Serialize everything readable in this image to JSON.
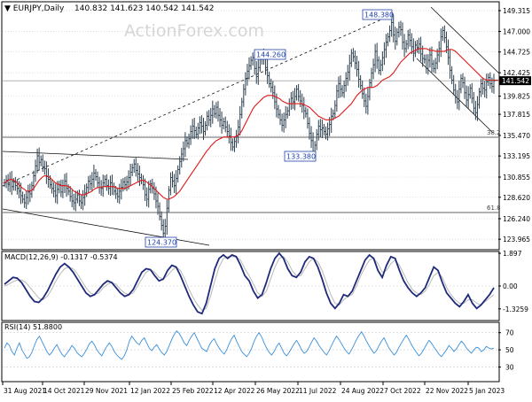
{
  "header": {
    "symbol_label": "EURJPY,Daily",
    "ohlc": "140.832 141.623 140.542 141.542"
  },
  "watermark": "ActionForex.com",
  "colors": {
    "price": "#2b3f4f",
    "ema": "#e01818",
    "macd": "#1f2a7a",
    "signal": "#b8b8b8",
    "rsi": "#3a8fd8",
    "trend": "#111111",
    "grid": "#cccccc"
  },
  "chart_data": [
    {
      "type": "candlestick",
      "title": "EURJPY,Daily",
      "y_ticks": [
        "149.315",
        "147.000",
        "144.725",
        "142.425",
        "139.825",
        "137.815",
        "135.470",
        "133.195",
        "130.855",
        "128.620",
        "126.240",
        "123.965"
      ],
      "ylim": [
        123.965,
        149.315
      ],
      "x_ticks": [
        "31 Aug 2021",
        "14 Oct 2021",
        "29 Nov 2021",
        "12 Jan 2022",
        "25 Feb 2022",
        "12 Apr 2022",
        "26 May 2022",
        "11 Jul 2022",
        "24 Aug 2022",
        "7 Oct 2022",
        "22 Nov 2022",
        "5 Jan 2023"
      ],
      "current_price": 141.542,
      "current_price_label": "141.542",
      "series": [
        {
          "values": [
            130.2,
            130.5,
            130.0,
            130.6,
            129.8,
            130.3,
            129.9,
            129.6,
            129.3,
            128.8,
            128.4,
            128.0,
            128.6,
            129.2,
            129.0,
            129.9,
            131.0,
            132.1,
            133.2,
            132.5,
            132.8,
            132.0,
            131.8,
            130.9,
            130.6,
            130.0,
            129.6,
            129.3,
            128.8,
            129.5,
            130.0,
            129.2,
            129.9,
            130.4,
            129.6,
            129.3,
            128.7,
            128.2,
            128.0,
            128.4,
            128.9,
            128.2,
            128.0,
            128.6,
            129.1,
            129.7,
            130.4,
            130.1,
            130.6,
            131.3,
            130.9,
            130.2,
            129.7,
            129.6,
            130.2,
            130.6,
            129.9,
            129.6,
            130.2,
            129.8,
            129.3,
            129.0,
            128.7,
            129.3,
            129.7,
            130.3,
            130.0,
            130.3,
            130.8,
            131.4,
            131.9,
            132.3,
            131.6,
            131.2,
            130.8,
            130.5,
            130.0,
            128.9,
            128.4,
            129.5,
            130.1,
            129.6,
            129.0,
            128.2,
            127.6,
            126.5,
            125.5,
            124.6,
            125.4,
            127.4,
            129.4,
            130.8,
            130.4,
            129.9,
            130.7,
            131.7,
            132.6,
            133.4,
            134.0,
            134.9,
            134.6,
            135.1,
            135.9,
            136.5,
            136.0,
            135.6,
            136.3,
            136.9,
            136.5,
            135.9,
            136.6,
            137.6,
            137.2,
            137.7,
            138.4,
            137.9,
            138.6,
            137.7,
            137.2,
            136.6,
            137.0,
            136.4,
            135.9,
            135.4,
            134.7,
            134.2,
            134.8,
            135.4,
            136.4,
            137.8,
            139.2,
            140.6,
            141.8,
            142.6,
            143.2,
            143.8,
            144.1,
            142.9,
            142.0,
            143.0,
            143.9,
            144.4,
            144.0,
            143.0,
            142.1,
            141.2,
            140.8,
            140.2,
            139.2,
            138.4,
            137.8,
            137.2,
            136.6,
            137.2,
            137.8,
            138.2,
            139.0,
            139.6,
            139.2,
            139.8,
            140.6,
            139.8,
            139.3,
            138.8,
            138.2,
            137.9,
            136.8,
            135.7,
            134.9,
            133.5,
            134.4,
            135.6,
            136.5,
            136.1,
            136.3,
            135.9,
            135.6,
            136.2,
            136.7,
            137.6,
            137.9,
            138.8,
            140.4,
            141.2,
            140.6,
            140.2,
            141.0,
            141.8,
            142.5,
            143.5,
            144.6,
            144.2,
            143.5,
            142.8,
            141.7,
            141.0,
            140.1,
            139.3,
            138.7,
            139.8,
            141.3,
            142.4,
            143.3,
            144.8,
            143.8,
            142.7,
            143.3,
            144.1,
            145.0,
            145.8,
            146.4,
            147.1,
            148.0,
            146.6,
            145.9,
            146.9,
            147.5,
            147.2,
            145.8,
            145.1,
            145.6,
            146.6,
            146.0,
            145.3,
            144.6,
            145.5,
            145.2,
            145.6,
            144.5,
            144.0,
            143.9,
            142.9,
            143.8,
            144.4,
            143.4,
            142.9,
            143.5,
            144.4,
            145.1,
            146.4,
            147.1,
            146.3,
            145.3,
            144.1,
            142.7,
            141.6,
            140.5,
            139.7,
            139.2,
            140.6,
            141.8,
            141.3,
            140.2,
            139.4,
            140.0,
            140.7,
            139.6,
            138.5,
            138.0,
            138.9,
            140.3,
            141.2,
            140.7,
            140.5,
            141.4,
            141.9,
            141.2,
            140.9,
            141.5
          ]
        },
        {
          "name": "EMA",
          "values": [
            130.2,
            130.3,
            130.5,
            130.6,
            130.6,
            130.5,
            130.4,
            130.2,
            130.0,
            129.8,
            129.6,
            129.5,
            129.3,
            129.3,
            129.3,
            129.4,
            129.6,
            129.9,
            130.2,
            130.5,
            130.7,
            130.9,
            131.0,
            131.0,
            130.9,
            130.8,
            130.6,
            130.4,
            130.2,
            130.1,
            130.0,
            129.9,
            129.9,
            129.9,
            129.9,
            129.8,
            129.7,
            129.5,
            129.3,
            129.2,
            129.1,
            129.0,
            128.9,
            128.9,
            128.9,
            129.0,
            129.1,
            129.2,
            129.3,
            129.5,
            129.6,
            129.7,
            129.7,
            129.7,
            129.8,
            129.8,
            129.8,
            129.8,
            129.8,
            129.8,
            129.8,
            129.7,
            129.6,
            129.6,
            129.6,
            129.6,
            129.6,
            129.7,
            129.8,
            129.9,
            130.0,
            130.1,
            130.2,
            130.3,
            130.4,
            130.5,
            130.5,
            130.4,
            130.3,
            130.1,
            130.0,
            129.8,
            129.6,
            129.4,
            129.2,
            129.0,
            128.8,
            128.6,
            128.5,
            128.4,
            128.4,
            128.5,
            128.6,
            128.7,
            128.9,
            129.1,
            129.3,
            129.6,
            129.9,
            130.2,
            130.5,
            130.8,
            131.1,
            131.4,
            131.7,
            132.0,
            132.3,
            132.6,
            132.9,
            133.2,
            133.5,
            133.8,
            134.0,
            134.3,
            134.5,
            134.7,
            134.9,
            135.0,
            135.1,
            135.2,
            135.3,
            135.3,
            135.3,
            135.3,
            135.3,
            135.3,
            135.3,
            135.4,
            135.5,
            135.7,
            136.0,
            136.4,
            136.8,
            137.2,
            137.6,
            138.0,
            138.4,
            138.7,
            138.9,
            139.1,
            139.3,
            139.5,
            139.7,
            139.8,
            139.9,
            139.9,
            139.9,
            139.9,
            139.8,
            139.7,
            139.6,
            139.5,
            139.3,
            139.2,
            139.1,
            139.0,
            139.0,
            139.0,
            139.0,
            139.0,
            139.0,
            139.0,
            139.0,
            139.0,
            138.9,
            138.8,
            138.7,
            138.6,
            138.4,
            138.2,
            138.0,
            137.8,
            137.6,
            137.5,
            137.4,
            137.3,
            137.2,
            137.2,
            137.2,
            137.2,
            137.3,
            137.4,
            137.5,
            137.6,
            137.8,
            138.0,
            138.2,
            138.4,
            138.6,
            138.8,
            139.0,
            139.3,
            139.6,
            139.9,
            140.1,
            140.3,
            140.5,
            140.6,
            140.7,
            140.8,
            140.8,
            140.8,
            140.8,
            140.9,
            141.0,
            141.2,
            141.4,
            141.6,
            141.7,
            141.8,
            141.9,
            142.0,
            142.2,
            142.4,
            142.7,
            143.0,
            143.3,
            143.6,
            143.8,
            144.0,
            144.2,
            144.4,
            144.6,
            144.7,
            144.8,
            144.9,
            145.0,
            145.1,
            145.1,
            145.1,
            145.1,
            145.1,
            145.0,
            144.9,
            144.9,
            144.9,
            144.8,
            144.8,
            144.8,
            144.8,
            144.8,
            144.8,
            144.9,
            145.0,
            145.0,
            145.0,
            144.9,
            144.8,
            144.6,
            144.4,
            144.2,
            144.0,
            143.8,
            143.6,
            143.4,
            143.2,
            143.0,
            142.8,
            142.6,
            142.4,
            142.2,
            142.0,
            141.8,
            141.7,
            141.6,
            141.6,
            141.6,
            141.6,
            141.6,
            141.6,
            141.6,
            141.5
          ]
        }
      ]
    },
    {
      "type": "line",
      "title": "MACD(12,26,9) -0.1317 -0.5374",
      "y_ticks": [
        "1.897",
        "0.00",
        "-1.3259"
      ],
      "ylim": [
        -1.9,
        1.9
      ],
      "series": [
        {
          "name": "MACD",
          "values": [
            0.1,
            0.3,
            0.5,
            0.45,
            0.2,
            -0.2,
            -0.6,
            -0.9,
            -0.95,
            -0.7,
            -0.3,
            0.2,
            0.7,
            1.1,
            1.3,
            1.1,
            0.8,
            0.4,
            0.0,
            -0.4,
            -0.6,
            -0.5,
            -0.2,
            0.1,
            0.3,
            0.2,
            -0.1,
            -0.4,
            -0.6,
            -0.5,
            -0.2,
            0.3,
            0.8,
            1.0,
            0.95,
            0.6,
            0.3,
            0.4,
            0.9,
            1.2,
            1.1,
            0.6,
            0.0,
            -0.6,
            -1.1,
            -1.5,
            -1.6,
            -1.0,
            0.0,
            1.0,
            1.6,
            1.8,
            1.6,
            1.8,
            1.7,
            1.2,
            0.6,
            0.3,
            -0.3,
            -0.7,
            -0.5,
            0.2,
            1.0,
            1.6,
            1.9,
            1.6,
            1.0,
            0.6,
            0.5,
            0.8,
            1.4,
            1.7,
            1.6,
            1.1,
            0.4,
            -0.4,
            -1.0,
            -1.3,
            -1.0,
            -0.5,
            -0.6,
            -0.3,
            0.3,
            0.9,
            1.5,
            1.8,
            1.6,
            0.9,
            0.5,
            1.2,
            1.7,
            1.6,
            0.9,
            0.3,
            -0.1,
            -0.4,
            -0.6,
            -0.4,
            -0.1,
            0.5,
            1.1,
            0.9,
            0.2,
            -0.4,
            -0.7,
            -1.0,
            -1.2,
            -0.9,
            -0.5,
            -1.0,
            -1.3,
            -1.1,
            -0.8,
            -0.5,
            -0.1
          ]
        },
        {
          "name": "Signal",
          "values": [
            0.0,
            0.1,
            0.25,
            0.35,
            0.35,
            0.2,
            -0.1,
            -0.4,
            -0.7,
            -0.8,
            -0.6,
            -0.2,
            0.3,
            0.7,
            1.0,
            1.1,
            1.0,
            0.7,
            0.3,
            -0.1,
            -0.4,
            -0.5,
            -0.4,
            -0.1,
            0.1,
            0.2,
            0.1,
            -0.2,
            -0.4,
            -0.5,
            -0.4,
            0.0,
            0.4,
            0.8,
            0.95,
            0.8,
            0.5,
            0.4,
            0.6,
            0.9,
            1.1,
            0.9,
            0.4,
            -0.2,
            -0.7,
            -1.1,
            -1.4,
            -1.3,
            -0.6,
            0.3,
            1.1,
            1.6,
            1.7,
            1.7,
            1.7,
            1.5,
            1.0,
            0.6,
            0.1,
            -0.4,
            -0.6,
            -0.3,
            0.4,
            1.1,
            1.6,
            1.7,
            1.4,
            0.9,
            0.6,
            0.6,
            1.0,
            1.4,
            1.6,
            1.4,
            0.9,
            0.2,
            -0.5,
            -1.0,
            -1.1,
            -0.8,
            -0.6,
            -0.5,
            0.0,
            0.6,
            1.1,
            1.5,
            1.6,
            1.3,
            0.8,
            0.9,
            1.3,
            1.5,
            1.2,
            0.7,
            0.2,
            -0.2,
            -0.4,
            -0.5,
            -0.3,
            0.1,
            0.6,
            0.8,
            0.5,
            -0.1,
            -0.5,
            -0.8,
            -1.0,
            -1.0,
            -0.8,
            -0.8,
            -1.0,
            -1.1,
            -0.9,
            -0.7,
            -0.5
          ]
        }
      ]
    },
    {
      "type": "line",
      "title": "RSI(14) 51.8800",
      "y_ticks": [
        "70",
        "50",
        "30"
      ],
      "ylim": [
        15,
        80
      ],
      "series": [
        {
          "name": "RSI",
          "values": [
            52,
            58,
            55,
            48,
            44,
            52,
            58,
            50,
            45,
            40,
            42,
            47,
            55,
            62,
            66,
            60,
            54,
            48,
            44,
            47,
            52,
            56,
            50,
            45,
            42,
            46,
            50,
            55,
            52,
            47,
            44,
            42,
            46,
            51,
            57,
            60,
            56,
            50,
            46,
            43,
            49,
            54,
            58,
            54,
            48,
            44,
            41,
            39,
            43,
            50,
            60,
            66,
            62,
            58,
            56,
            61,
            64,
            58,
            52,
            49,
            53,
            56,
            51,
            47,
            44,
            48,
            55,
            62,
            68,
            72,
            69,
            64,
            58,
            55,
            61,
            66,
            70,
            64,
            58,
            52,
            50,
            48,
            55,
            60,
            63,
            57,
            52,
            48,
            45,
            50,
            57,
            63,
            67,
            60,
            54,
            48,
            45,
            42,
            46,
            52,
            60,
            66,
            70,
            65,
            58,
            52,
            47,
            44,
            48,
            54,
            58,
            52,
            46,
            43,
            47,
            52,
            57,
            61,
            56,
            50,
            46,
            48,
            53,
            59,
            64,
            60,
            55,
            51,
            47,
            44,
            49,
            55,
            61,
            66,
            62,
            57,
            52,
            48,
            45,
            50,
            56,
            62,
            67,
            71,
            66,
            60,
            55,
            50,
            46,
            49,
            55,
            60,
            64,
            58,
            52,
            48,
            44,
            47,
            53,
            58,
            63,
            67,
            62,
            56,
            51,
            47,
            43,
            46,
            51,
            56,
            61,
            58,
            53,
            49,
            45,
            42,
            46,
            50,
            55,
            52,
            48,
            51,
            56,
            60,
            57,
            52,
            49,
            46,
            50,
            53,
            52,
            48,
            50,
            54,
            52,
            51,
            52
          ]
        }
      ]
    }
  ],
  "annotations": {
    "peaks": [
      "148.380",
      "144.260"
    ],
    "troughs": [
      "133.380",
      "124.370"
    ],
    "fib_382": "38.2",
    "fib_618": "61.8"
  }
}
